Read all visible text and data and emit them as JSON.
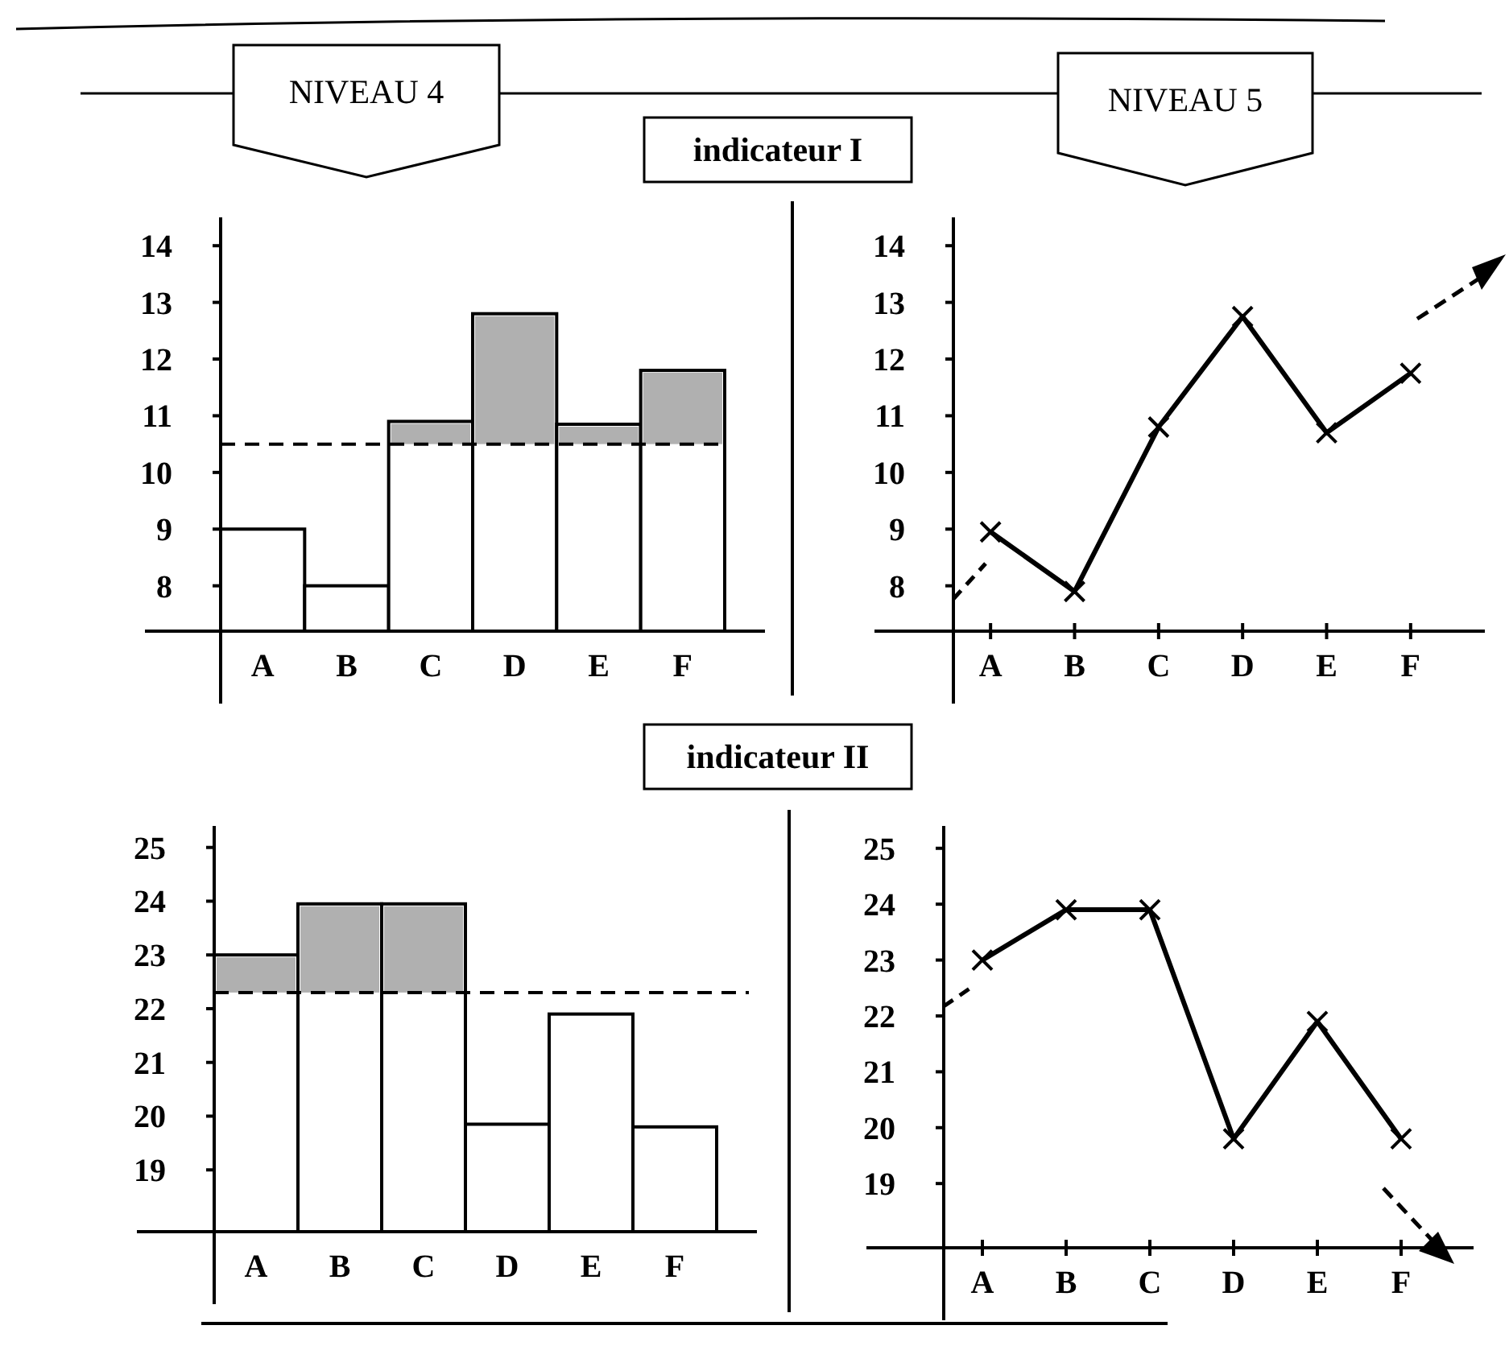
{
  "chart_data": [
    {
      "type": "bar",
      "title": "NIVEAU 4",
      "subtitle": "indicateur I",
      "categories": [
        "A",
        "B",
        "C",
        "D",
        "E",
        "F"
      ],
      "series": [
        {
          "color": "#ffffff",
          "values": [
            9,
            8,
            10.9,
            12.8,
            10.85,
            11.8
          ]
        }
      ],
      "ylim": [
        7.2,
        14.5
      ],
      "yticks": [
        8,
        9,
        10,
        11,
        12,
        13,
        14
      ],
      "ref_lines": [
        {
          "axis": "y",
          "value": 10.5,
          "line_style": "dashed"
        }
      ],
      "bands": [
        {
          "axis": "y",
          "from": 10.5,
          "to": 14.5,
          "color": "#b0b0b0"
        }
      ]
    },
    {
      "type": "line",
      "title": "NIVEAU 5",
      "categories": [
        "A",
        "B",
        "C",
        "D",
        "E",
        "F"
      ],
      "series": [
        {
          "color": "#000000",
          "values": [
            8.95,
            7.9,
            10.8,
            12.75,
            10.7,
            11.75
          ]
        }
      ],
      "marker": "cross",
      "ylim": [
        7.2,
        14.5
      ],
      "yticks": [
        8,
        9,
        10,
        11,
        12,
        13,
        14
      ]
    },
    {
      "type": "bar",
      "subtitle": "indicateur II",
      "categories": [
        "A",
        "B",
        "C",
        "D",
        "E",
        "F"
      ],
      "series": [
        {
          "color": "#ffffff",
          "values": [
            23,
            23.95,
            23.95,
            19.85,
            21.9,
            19.8
          ]
        }
      ],
      "ylim": [
        17.85,
        25.4
      ],
      "yticks": [
        19,
        20,
        21,
        22,
        23,
        24,
        25
      ],
      "ref_lines": [
        {
          "axis": "y",
          "value": 22.3,
          "line_style": "dashed"
        }
      ],
      "bands": [
        {
          "axis": "y",
          "from": 22.3,
          "to": 25.4,
          "color": "#b0b0b0"
        }
      ]
    },
    {
      "type": "line",
      "categories": [
        "A",
        "B",
        "C",
        "D",
        "E",
        "F"
      ],
      "series": [
        {
          "color": "#000000",
          "values": [
            23,
            23.9,
            23.9,
            19.8,
            21.9,
            19.8
          ]
        }
      ],
      "marker": "cross",
      "ylim": [
        17.85,
        25.4
      ],
      "yticks": [
        19,
        20,
        21,
        22,
        23,
        24,
        25
      ]
    }
  ]
}
